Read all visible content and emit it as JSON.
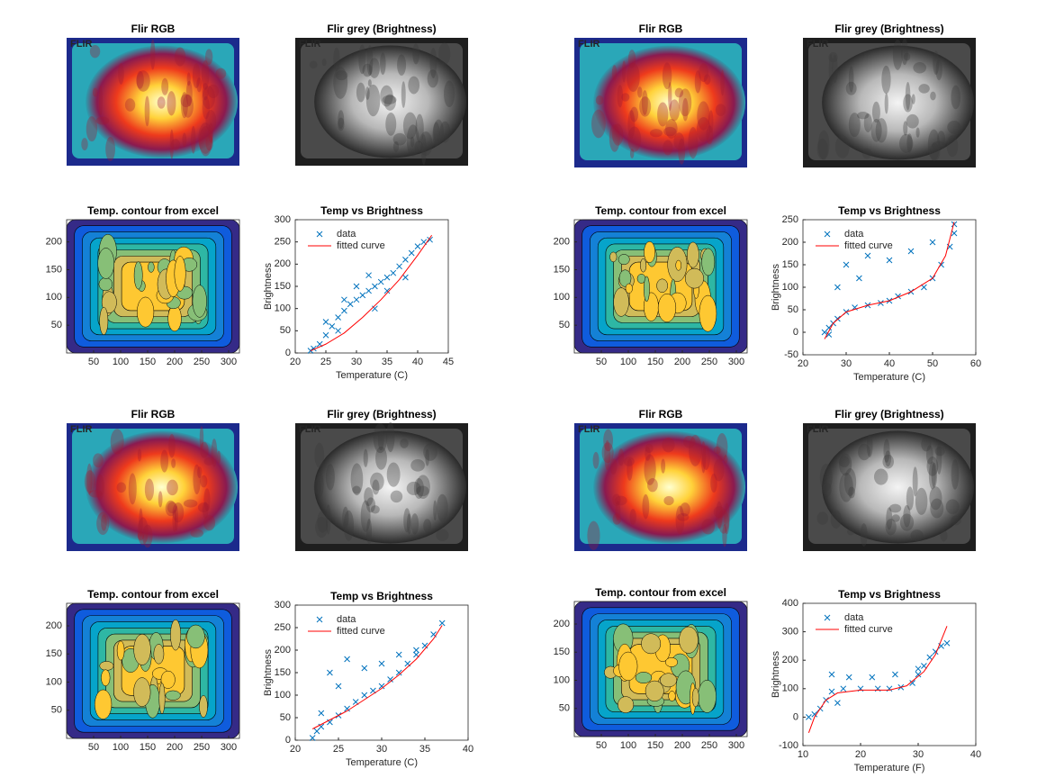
{
  "chart_data": [
    {
      "type": "image",
      "title": "Flir RGB",
      "logo": "FLIR",
      "colormap": "hot"
    },
    {
      "type": "image",
      "title": "Flir grey (Brightness)",
      "logo": "FLIR",
      "colormap": "gray"
    },
    {
      "type": "contour",
      "title": "Temp. contour from excel",
      "xlim": [
        0,
        320
      ],
      "ylim": [
        0,
        240
      ],
      "xticks": [
        50,
        100,
        150,
        200,
        250,
        300
      ],
      "yticks": [
        50,
        100,
        150,
        200
      ]
    },
    {
      "type": "scatter",
      "title": "Temp vs Brightness",
      "xlabel": "Temperature (C)",
      "ylabel": "Brightness",
      "xlim": [
        20,
        45
      ],
      "ylim": [
        0,
        300
      ],
      "xticks": [
        20,
        25,
        30,
        35,
        40,
        45
      ],
      "yticks": [
        0,
        50,
        100,
        150,
        200,
        250,
        300
      ],
      "legend": "northwest",
      "series": [
        {
          "name": "data",
          "color": "#0072bd",
          "x": [
            22.5,
            23,
            24,
            25,
            26,
            27,
            28,
            29,
            30,
            31,
            32,
            33,
            34,
            35,
            36,
            37,
            38,
            39,
            40,
            41,
            42,
            25,
            28,
            30,
            32,
            35,
            38,
            33,
            27
          ],
          "values": [
            5,
            10,
            20,
            40,
            60,
            80,
            95,
            110,
            120,
            130,
            140,
            150,
            160,
            170,
            180,
            195,
            210,
            225,
            240,
            250,
            255,
            70,
            120,
            150,
            175,
            140,
            170,
            100,
            50
          ]
        },
        {
          "name": "fitted curve",
          "color": "#ff0000",
          "x": [
            22.5,
            25,
            28,
            31,
            34,
            37,
            40,
            42.3
          ],
          "values": [
            5,
            20,
            45,
            80,
            120,
            165,
            220,
            265
          ]
        }
      ]
    },
    {
      "type": "image",
      "title": "Flir RGB",
      "logo": "FLIR",
      "colormap": "hot"
    },
    {
      "type": "image",
      "title": "Flir grey (Brightness)",
      "logo": "FLIR",
      "colormap": "gray"
    },
    {
      "type": "contour",
      "title": "Temp. contour from excel",
      "xlim": [
        0,
        320
      ],
      "ylim": [
        0,
        240
      ],
      "xticks": [
        50,
        100,
        150,
        200,
        250,
        300
      ],
      "yticks": [
        50,
        100,
        150,
        200
      ]
    },
    {
      "type": "scatter",
      "title": "Temp vs Brightness",
      "xlabel": "Temperature (C)",
      "ylabel": "Brightness",
      "xlim": [
        20,
        60
      ],
      "ylim": [
        -50,
        250
      ],
      "xticks": [
        20,
        30,
        40,
        50,
        60
      ],
      "yticks": [
        -50,
        0,
        50,
        100,
        150,
        200,
        250
      ],
      "legend": "northwest",
      "series": [
        {
          "name": "data",
          "color": "#0072bd",
          "x": [
            25,
            26,
            27,
            28,
            30,
            32,
            35,
            38,
            40,
            42,
            45,
            48,
            50,
            52,
            54,
            55,
            30,
            35,
            40,
            45,
            50,
            28,
            33,
            26,
            55
          ],
          "values": [
            0,
            10,
            20,
            30,
            45,
            55,
            60,
            65,
            70,
            80,
            90,
            100,
            120,
            150,
            190,
            240,
            150,
            170,
            160,
            180,
            200,
            100,
            120,
            -5,
            220
          ]
        },
        {
          "name": "fitted curve",
          "color": "#ff0000",
          "x": [
            25,
            27,
            30,
            35,
            40,
            45,
            50,
            53,
            55
          ],
          "values": [
            -15,
            20,
            45,
            60,
            70,
            90,
            120,
            170,
            245
          ]
        }
      ]
    },
    {
      "type": "image",
      "title": "Flir RGB",
      "logo": "FLIR",
      "colormap": "hot"
    },
    {
      "type": "image",
      "title": "Flir grey (Brightness)",
      "logo": "FLIR",
      "colormap": "gray"
    },
    {
      "type": "contour",
      "title": "Temp. contour from excel",
      "xlim": [
        0,
        320
      ],
      "ylim": [
        0,
        240
      ],
      "xticks": [
        50,
        100,
        150,
        200,
        250,
        300
      ],
      "yticks": [
        50,
        100,
        150,
        200
      ]
    },
    {
      "type": "scatter",
      "title": "Temp vs Brightness",
      "xlabel": "Temperature (C)",
      "ylabel": "Brightness",
      "xlim": [
        20,
        40
      ],
      "ylim": [
        0,
        300
      ],
      "xticks": [
        20,
        25,
        30,
        35,
        40
      ],
      "yticks": [
        0,
        50,
        100,
        150,
        200,
        250,
        300
      ],
      "legend": "northwest",
      "series": [
        {
          "name": "data",
          "color": "#0072bd",
          "x": [
            22,
            22.5,
            23,
            24,
            25,
            26,
            27,
            28,
            29,
            30,
            31,
            32,
            33,
            34,
            35,
            36,
            37,
            24,
            26,
            28,
            30,
            32,
            34,
            23,
            25
          ],
          "values": [
            5,
            20,
            30,
            40,
            55,
            70,
            85,
            100,
            110,
            120,
            135,
            150,
            170,
            190,
            210,
            235,
            260,
            150,
            180,
            160,
            170,
            190,
            200,
            60,
            120
          ]
        },
        {
          "name": "fitted curve",
          "color": "#ff0000",
          "x": [
            22,
            24,
            26,
            28,
            30,
            32,
            34,
            36,
            37
          ],
          "values": [
            25,
            45,
            65,
            90,
            115,
            145,
            180,
            225,
            255
          ]
        }
      ]
    },
    {
      "type": "image",
      "title": "Flir RGB",
      "logo": "FLIR",
      "colormap": "hot"
    },
    {
      "type": "image",
      "title": "Flir grey (Brightness)",
      "logo": "FLIR",
      "colormap": "gray"
    },
    {
      "type": "contour",
      "title": "Temp. contour from excel",
      "xlim": [
        0,
        320
      ],
      "ylim": [
        0,
        240
      ],
      "xticks": [
        50,
        100,
        150,
        200,
        250,
        300
      ],
      "yticks": [
        50,
        100,
        150,
        200
      ]
    },
    {
      "type": "scatter",
      "title": "Temp vs Brightness",
      "xlabel": "Temperature (F)",
      "ylabel": "Brightness",
      "xlim": [
        10,
        40
      ],
      "ylim": [
        -100,
        400
      ],
      "xticks": [
        10,
        20,
        30,
        40
      ],
      "yticks": [
        -100,
        0,
        100,
        200,
        300,
        400
      ],
      "legend": "northwest",
      "series": [
        {
          "name": "data",
          "color": "#0072bd",
          "x": [
            11,
            12,
            13,
            14,
            15,
            17,
            20,
            23,
            25,
            27,
            29,
            30,
            31,
            32,
            33,
            34,
            35,
            15,
            18,
            22,
            26,
            30,
            16
          ],
          "values": [
            0,
            10,
            30,
            60,
            90,
            100,
            100,
            100,
            100,
            105,
            120,
            150,
            180,
            210,
            230,
            250,
            260,
            150,
            140,
            140,
            150,
            170,
            50
          ]
        },
        {
          "name": "fitted curve",
          "color": "#ff0000",
          "x": [
            11,
            12,
            14,
            16,
            20,
            25,
            28,
            31,
            33,
            35
          ],
          "values": [
            -55,
            0,
            60,
            85,
            95,
            95,
            110,
            160,
            220,
            320
          ]
        }
      ]
    }
  ]
}
